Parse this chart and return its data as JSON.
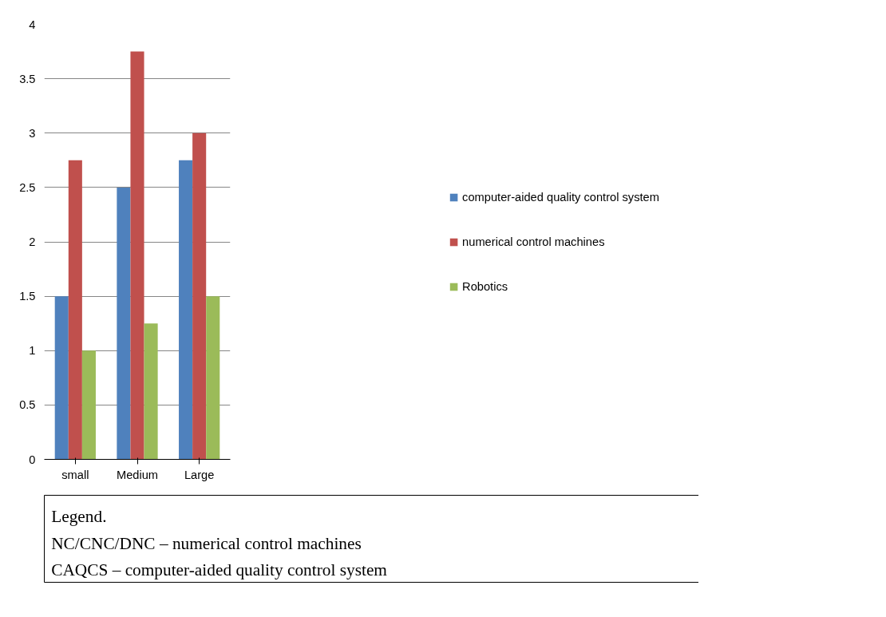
{
  "chart_data": {
    "type": "bar",
    "categories": [
      "small",
      "Medium",
      "Large"
    ],
    "series": [
      {
        "name": "computer-aided quality control system",
        "color": "#4f81bd",
        "values": [
          1.5,
          2.5,
          2.75
        ]
      },
      {
        "name": "numerical control machines",
        "color": "#c0504d",
        "values": [
          2.75,
          3.75,
          3
        ]
      },
      {
        "name": "Robotics",
        "color": "#9bbb59",
        "values": [
          1,
          1.25,
          1.5
        ]
      }
    ],
    "ylim": [
      0,
      4
    ],
    "yticks": [
      0,
      0.5,
      1,
      1.5,
      2,
      2.5,
      3,
      3.5,
      4
    ],
    "grid": "y",
    "legend": "right",
    "annotations": [
      "Legend.",
      "NC/CNC/DNC –      numerical control machines",
      "CAQCS        –      computer-aided quality control system"
    ]
  }
}
